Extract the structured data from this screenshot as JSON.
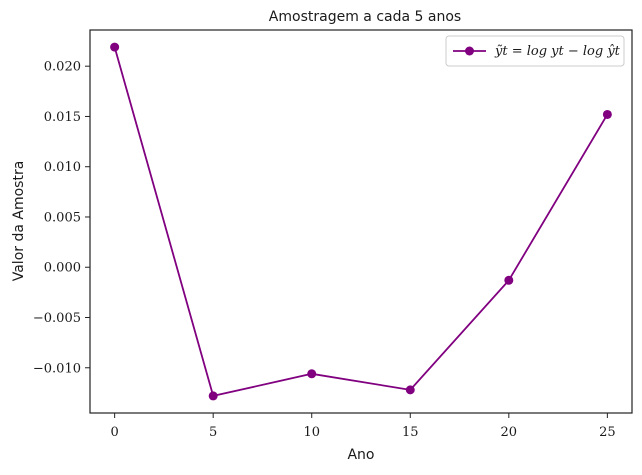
{
  "chart_data": {
    "type": "line",
    "title": "Amostragem a cada 5 anos",
    "xlabel": "Ano",
    "ylabel": "Valor da Amostra",
    "x": [
      0,
      5,
      10,
      15,
      20,
      25
    ],
    "series": [
      {
        "name": "ỹt = log yt − log ŷt",
        "color": "#800080",
        "marker": "circle",
        "values": [
          0.0219,
          -0.0128,
          -0.0106,
          -0.0122,
          -0.0013,
          0.0152
        ]
      }
    ],
    "xlim": [
      -1.25,
      26.25
    ],
    "ylim": [
      -0.0145,
      0.0236
    ],
    "xticks": [
      0,
      5,
      10,
      15,
      20,
      25
    ],
    "xtick_labels": [
      "0",
      "5",
      "10",
      "15",
      "20",
      "25"
    ],
    "yticks": [
      0.02,
      0.015,
      0.01,
      0.005,
      0.0,
      -0.005,
      -0.01
    ],
    "ytick_labels": [
      "0.020",
      "0.015",
      "0.010",
      "0.005",
      "0.000",
      "−0.005",
      "−0.010"
    ],
    "grid": false,
    "legend_position": "top-right"
  }
}
